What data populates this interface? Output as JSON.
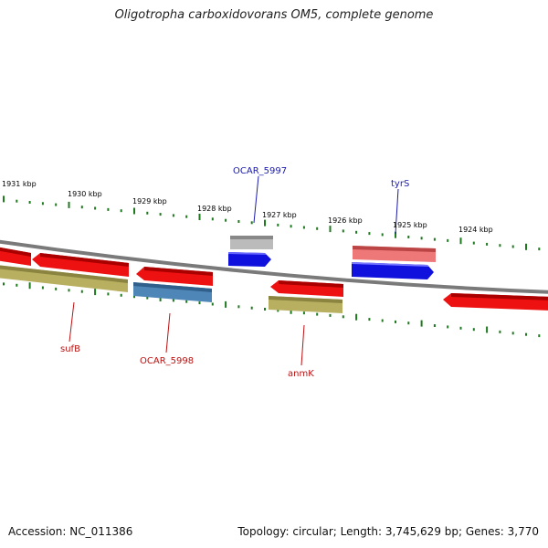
{
  "title": "Oligotropha carboxidovorans OM5, complete genome",
  "footer": {
    "accession": "Accession: NC_011386",
    "summary": "Topology: circular; Length: 3,745,629 bp; Genes: 3,770"
  },
  "axis_labels": [
    "1931 kbp",
    "1930 kbp",
    "1929 kbp",
    "1928 kbp",
    "1927 kbp",
    "1926 kbp",
    "1925 kbp",
    "1924 kbp"
  ],
  "gene_labels": {
    "ocar5997": "OCAR_5997",
    "tyrs": "tyrS",
    "sufb": "sufB",
    "ocar5998": "OCAR_5998",
    "anmk": "anmK"
  },
  "colors": {
    "red": "#ee1111",
    "red_light": "#ee7777",
    "blue": "#1111dd",
    "steel": "#4f86b8",
    "olive": "#b8b060",
    "gray": "#bbbbbb",
    "tick_green": "#1f7a1f",
    "label_blue": "#1a1aaa",
    "label_red": "#bb1111"
  }
}
